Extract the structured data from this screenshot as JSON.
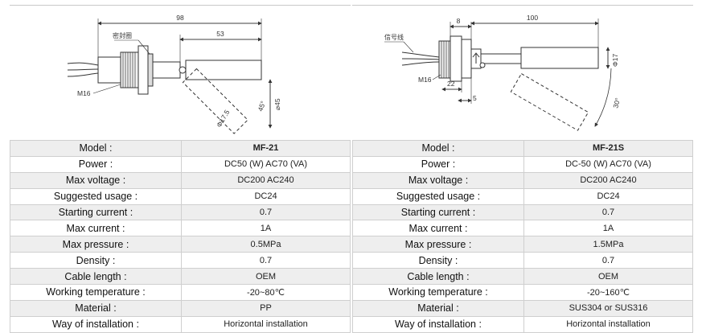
{
  "products": [
    {
      "drawing": {
        "dims": [
          "98",
          "53",
          "M16",
          "Φ17.5",
          "45°",
          "⌀45"
        ],
        "seal_label": "密封圈"
      },
      "specs": [
        {
          "label": "Model :",
          "value": "MF-21"
        },
        {
          "label": "Power :",
          "value": "DC50 (W) AC70 (VA)"
        },
        {
          "label": "Max voltage :",
          "value": "DC200 AC240"
        },
        {
          "label": "Suggested usage :",
          "value": "DC24"
        },
        {
          "label": "Starting current :",
          "value": "0.7"
        },
        {
          "label": "Max current :",
          "value": "1A"
        },
        {
          "label": "Max pressure :",
          "value": "0.5MPa"
        },
        {
          "label": "Density :",
          "value": "0.7"
        },
        {
          "label": "Cable length :",
          "value": "OEM"
        },
        {
          "label": "Working temperature :",
          "value": "-20~80℃"
        },
        {
          "label": "Material :",
          "value": "PP"
        },
        {
          "label": "Way of installation :",
          "value": "Horizontal installation"
        }
      ]
    },
    {
      "drawing": {
        "dims": [
          "8",
          "100",
          "M16",
          "22",
          "5",
          "Φ17",
          "30°"
        ],
        "signal_label": "信号线"
      },
      "specs": [
        {
          "label": "Model :",
          "value": "MF-21S"
        },
        {
          "label": "Power :",
          "value": "DC-50 (W) AC70 (VA)"
        },
        {
          "label": "Max voltage :",
          "value": "DC200 AC240"
        },
        {
          "label": "Suggested usage :",
          "value": "DC24"
        },
        {
          "label": "Starting current :",
          "value": "0.7"
        },
        {
          "label": "Max current :",
          "value": "1A"
        },
        {
          "label": "Max pressure :",
          "value": "1.5MPa"
        },
        {
          "label": "Density :",
          "value": "0.7"
        },
        {
          "label": "Cable length :",
          "value": "OEM"
        },
        {
          "label": "Working temperature :",
          "value": "-20~160℃"
        },
        {
          "label": "Material :",
          "value": "SUS304 or SUS316"
        },
        {
          "label": "Way of installation :",
          "value": "Horizontal installation"
        }
      ]
    }
  ]
}
